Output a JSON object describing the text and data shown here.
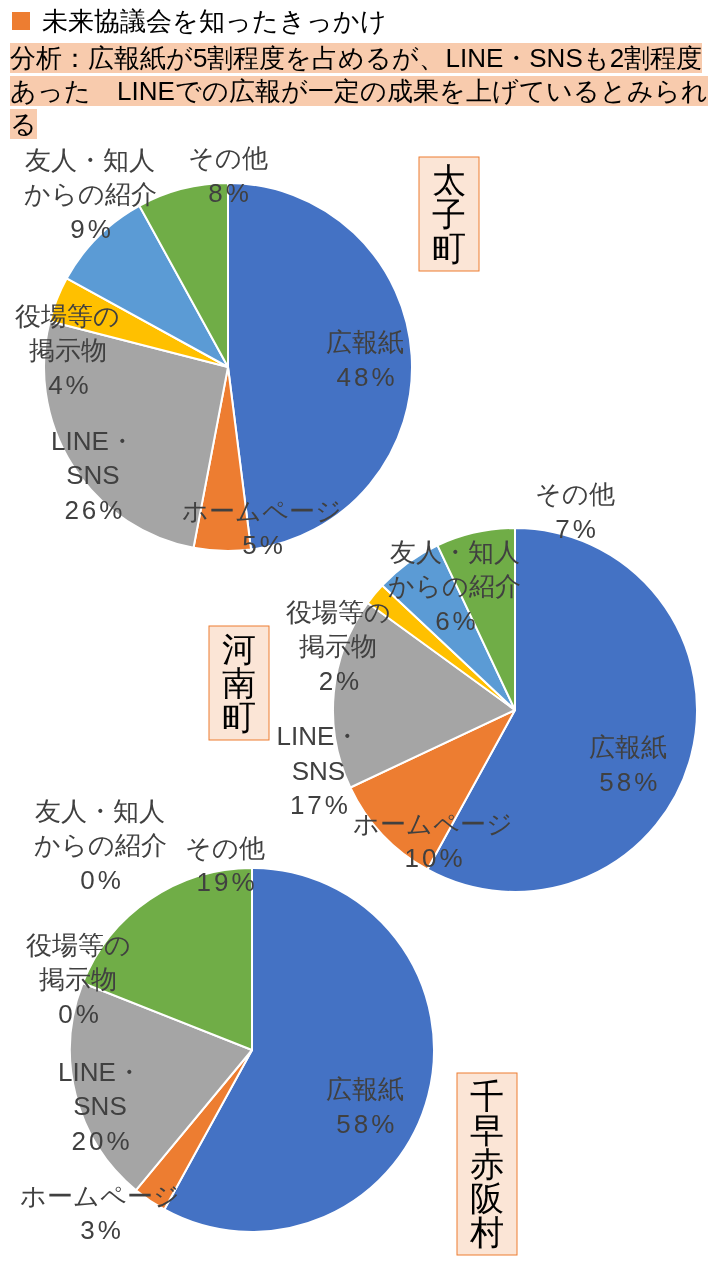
{
  "chart_data": [
    {
      "type": "other",
      "title": "未来協議会を知ったきっかけ",
      "subtitle": "分析：広報紙が5割程度を占めるが、LINE・SNSも2割程度あった　LINEでの広報が一定の成果を上げているとみられる"
    },
    {
      "type": "pie",
      "title": "太子町",
      "categories": [
        "広報紙",
        "ホームページ",
        "LINE・SNS",
        "役場等の掲示物",
        "友人・知人からの紹介",
        "その他"
      ],
      "values": [
        48,
        5,
        26,
        4,
        9,
        8
      ],
      "value_labels": [
        "48%",
        "5%",
        "26%",
        "4%",
        "9%",
        "8%"
      ],
      "colors": [
        "#4472c4",
        "#ed7d31",
        "#a5a5a5",
        "#ffc000",
        "#5b9bd5",
        "#70ad47"
      ]
    },
    {
      "type": "pie",
      "title": "河南町",
      "categories": [
        "広報紙",
        "ホームページ",
        "LINE・SNS",
        "役場等の掲示物",
        "友人・知人からの紹介",
        "その他"
      ],
      "values": [
        58,
        10,
        17,
        2,
        6,
        7
      ],
      "value_labels": [
        "58%",
        "10%",
        "17%",
        "2%",
        "6%",
        "7%"
      ],
      "colors": [
        "#4472c4",
        "#ed7d31",
        "#a5a5a5",
        "#ffc000",
        "#5b9bd5",
        "#70ad47"
      ]
    },
    {
      "type": "pie",
      "title": "千早赤阪村",
      "categories": [
        "広報紙",
        "ホームページ",
        "LINE・SNS",
        "役場等の掲示物",
        "友人・知人からの紹介",
        "その他"
      ],
      "values": [
        58,
        3,
        20,
        0,
        0,
        19
      ],
      "value_labels": [
        "58%",
        "3%",
        "20%",
        "0%",
        "0%",
        "19%"
      ],
      "colors": [
        "#4472c4",
        "#ed7d31",
        "#a5a5a5",
        null,
        null,
        "#70ad47"
      ]
    }
  ]
}
